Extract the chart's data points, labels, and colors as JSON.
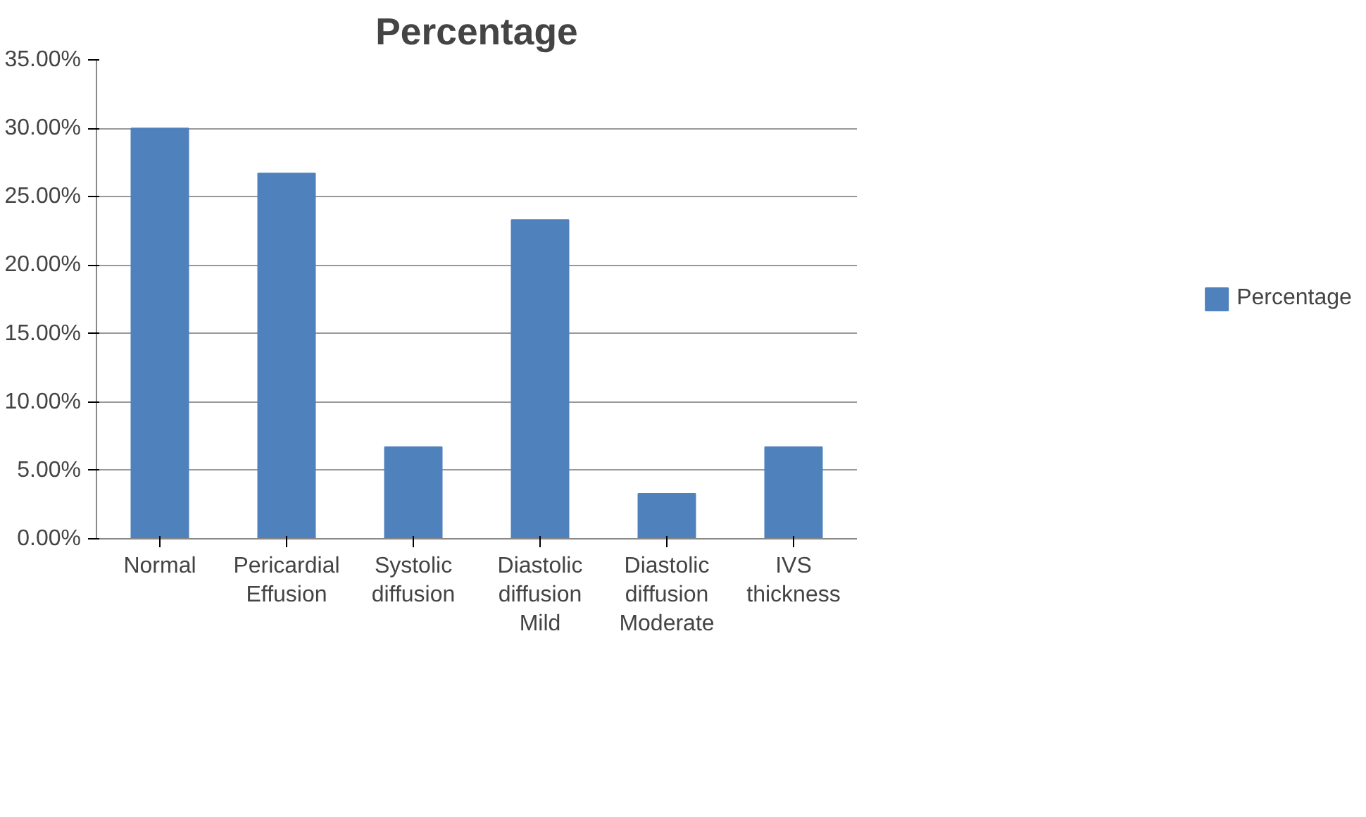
{
  "chart_data": {
    "type": "bar",
    "title": "Percentage",
    "categories": [
      "Normal",
      "Pericardial Effusion",
      "Systolic diffusion",
      "Diastolic diffusion Mild",
      "Diastolic diffusion Moderate",
      "IVS thickness"
    ],
    "series": [
      {
        "name": "Percentage",
        "color": "#4f81bd",
        "values": [
          30,
          26.7,
          6.7,
          23.3,
          3.3,
          6.7
        ]
      }
    ],
    "ylim": [
      0,
      35
    ],
    "yticks": [
      {
        "value": 0,
        "label": "0.00%"
      },
      {
        "value": 5,
        "label": "5.00%"
      },
      {
        "value": 10,
        "label": "10.00%"
      },
      {
        "value": 15,
        "label": "15.00%"
      },
      {
        "value": 20,
        "label": "20.00%"
      },
      {
        "value": 25,
        "label": "25.00%"
      },
      {
        "value": 30,
        "label": "30.00%"
      },
      {
        "value": 35,
        "label": "35.00%"
      }
    ],
    "grid": "y",
    "legend": "right"
  }
}
